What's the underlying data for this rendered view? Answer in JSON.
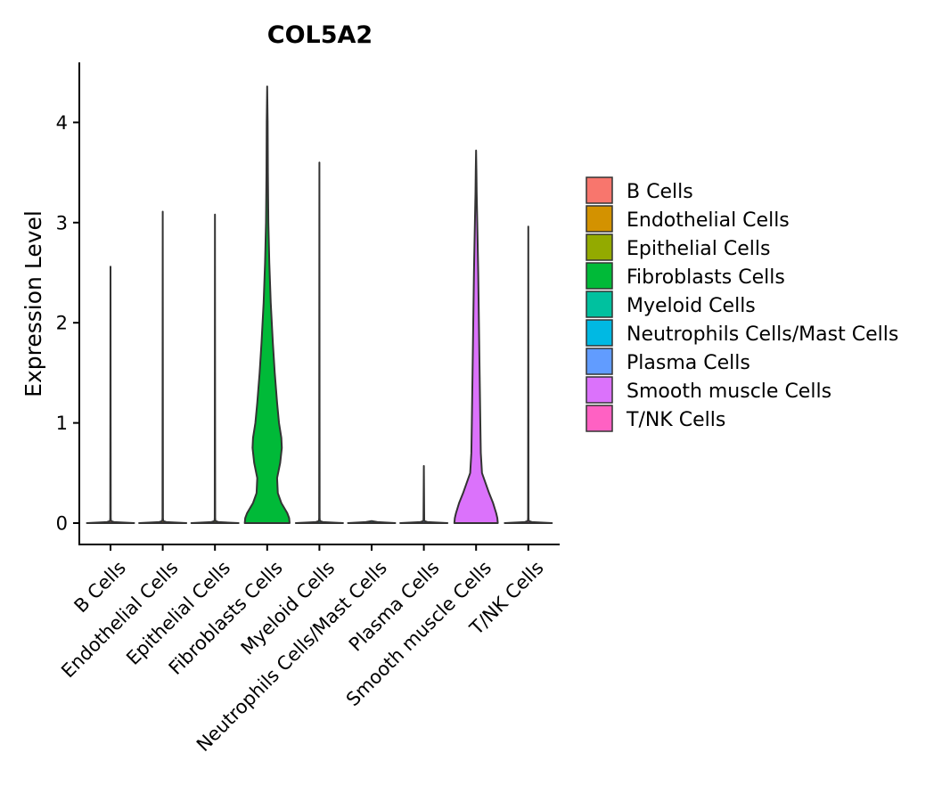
{
  "chart_data": {
    "type": "violin",
    "title": "COL5A2",
    "xlabel": "",
    "ylabel": "Expression Level",
    "ylim": [
      -0.2,
      4.6
    ],
    "yticks": [
      0,
      1,
      2,
      3,
      4
    ],
    "grid": false,
    "legend_position": "right",
    "categories": [
      "B Cells",
      "Endothelial Cells",
      "Epithelial Cells",
      "Fibroblasts Cells",
      "Myeloid Cells",
      "Neutrophils Cells/Mast Cells",
      "Plasma Cells",
      "Smooth muscle Cells",
      "T/NK Cells"
    ],
    "colors": [
      "#F8766D",
      "#D39200",
      "#93AA00",
      "#00BA38",
      "#00C19F",
      "#00B9E3",
      "#619CFF",
      "#DB72FB",
      "#FF61C3"
    ],
    "max_values": [
      2.56,
      3.11,
      3.08,
      4.36,
      3.6,
      0.0,
      0.57,
      3.72,
      2.96
    ],
    "density_profiles": [
      [
        [
          0,
          1
        ],
        [
          0.01,
          0.15
        ],
        [
          0.02,
          0.02
        ],
        [
          0.05,
          0.01
        ],
        [
          2.56,
          0
        ]
      ],
      [
        [
          0,
          1
        ],
        [
          0.01,
          0.15
        ],
        [
          0.02,
          0.02
        ],
        [
          0.05,
          0.01
        ],
        [
          3.11,
          0
        ]
      ],
      [
        [
          0,
          1
        ],
        [
          0.01,
          0.15
        ],
        [
          0.02,
          0.02
        ],
        [
          0.05,
          0.01
        ],
        [
          3.08,
          0
        ]
      ],
      [
        [
          0,
          0.95
        ],
        [
          0.05,
          0.93
        ],
        [
          0.1,
          0.85
        ],
        [
          0.2,
          0.6
        ],
        [
          0.3,
          0.45
        ],
        [
          0.45,
          0.42
        ],
        [
          0.6,
          0.55
        ],
        [
          0.75,
          0.62
        ],
        [
          0.85,
          0.6
        ],
        [
          1.0,
          0.5
        ],
        [
          1.2,
          0.42
        ],
        [
          1.5,
          0.32
        ],
        [
          1.8,
          0.24
        ],
        [
          2.2,
          0.15
        ],
        [
          2.6,
          0.09
        ],
        [
          3.0,
          0.05
        ],
        [
          3.5,
          0.03
        ],
        [
          4.0,
          0.02
        ],
        [
          4.36,
          0
        ]
      ],
      [
        [
          0,
          1
        ],
        [
          0.01,
          0.15
        ],
        [
          0.02,
          0.02
        ],
        [
          0.05,
          0.01
        ],
        [
          3.6,
          0
        ]
      ],
      [
        [
          0,
          1
        ],
        [
          0.01,
          0.25
        ],
        [
          0.02,
          0
        ]
      ],
      [
        [
          0,
          1
        ],
        [
          0.01,
          0.15
        ],
        [
          0.02,
          0.02
        ],
        [
          0.05,
          0.015
        ],
        [
          0.57,
          0
        ]
      ],
      [
        [
          0,
          0.92
        ],
        [
          0.05,
          0.9
        ],
        [
          0.1,
          0.85
        ],
        [
          0.2,
          0.72
        ],
        [
          0.3,
          0.55
        ],
        [
          0.4,
          0.4
        ],
        [
          0.5,
          0.25
        ],
        [
          0.7,
          0.2
        ],
        [
          1.0,
          0.18
        ],
        [
          1.5,
          0.15
        ],
        [
          2.0,
          0.12
        ],
        [
          2.5,
          0.09
        ],
        [
          3.0,
          0.05
        ],
        [
          3.3,
          0.025
        ],
        [
          3.5,
          0.015
        ],
        [
          3.72,
          0
        ]
      ],
      [
        [
          0,
          1
        ],
        [
          0.01,
          0.15
        ],
        [
          0.02,
          0.02
        ],
        [
          0.05,
          0.01
        ],
        [
          2.96,
          0
        ]
      ]
    ]
  }
}
